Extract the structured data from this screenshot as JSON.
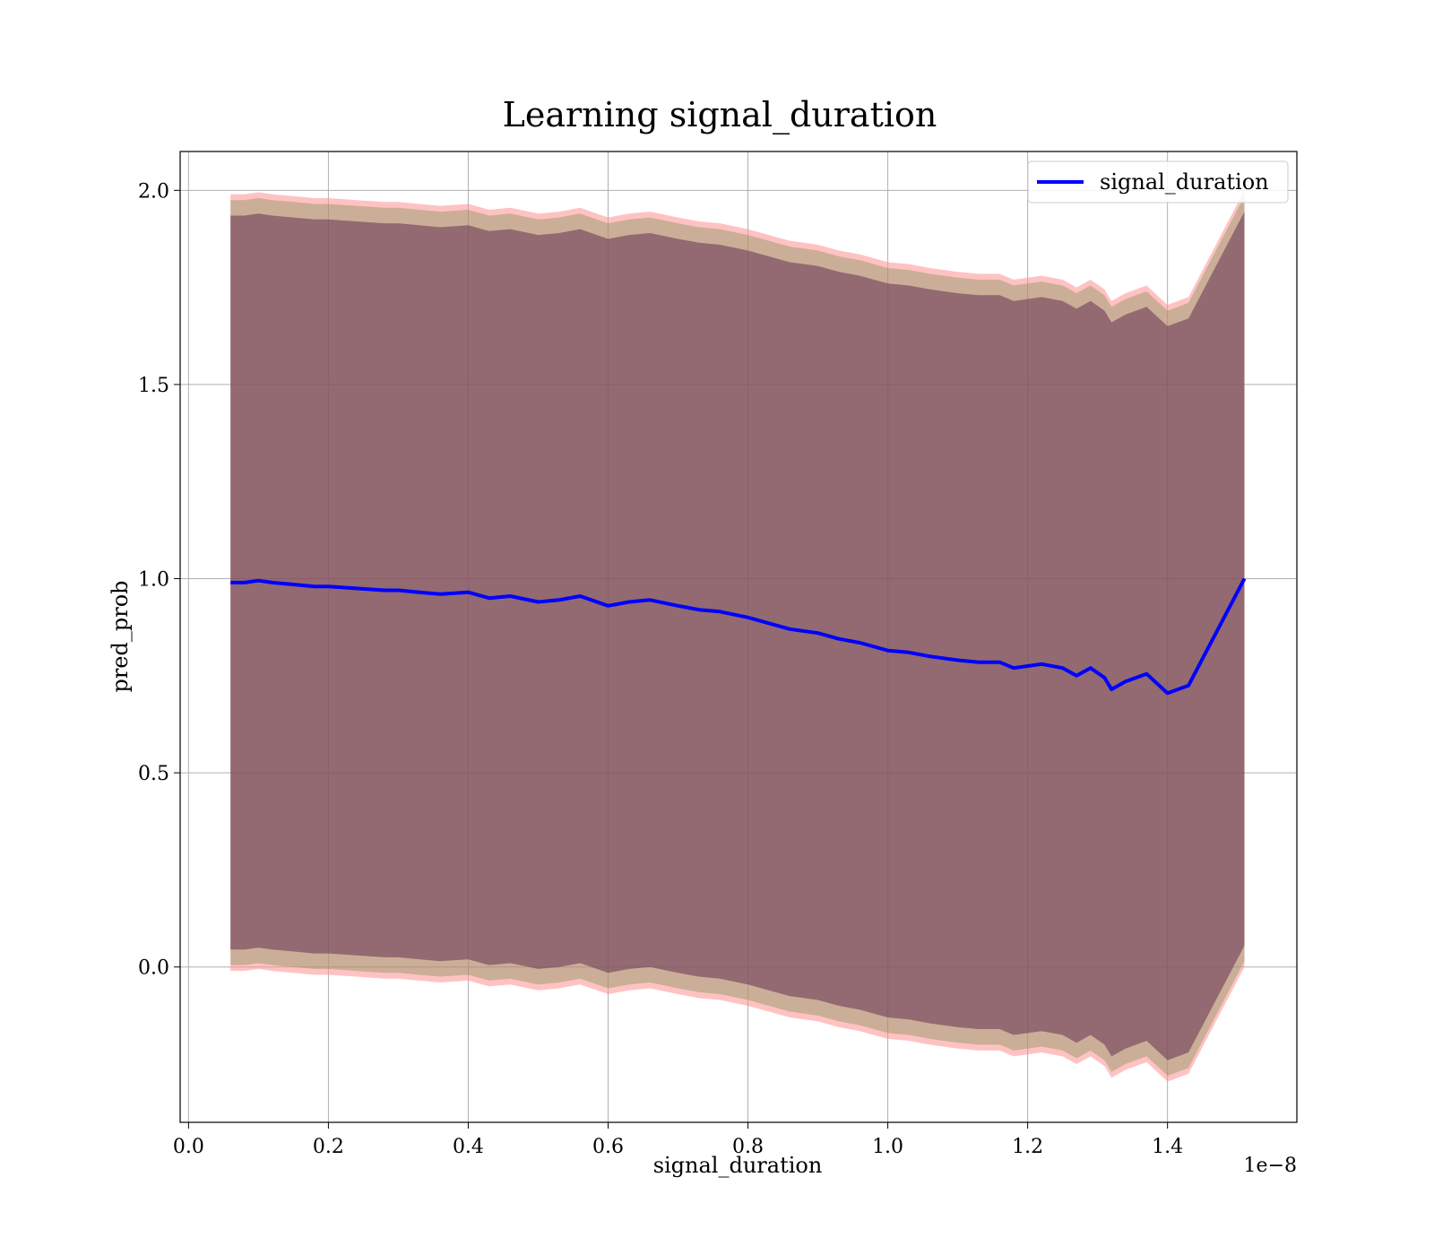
{
  "chart_data": {
    "type": "line",
    "title": "Learning signal_duration",
    "xlabel": "signal_duration",
    "ylabel": "pred_prob",
    "x_offset_label": "1e−8",
    "xlim": [
      -0.012,
      1.585
    ],
    "ylim": [
      -0.4,
      2.1
    ],
    "x_ticks": [
      0.0,
      0.2,
      0.4,
      0.6,
      0.8,
      1.0,
      1.2,
      1.4
    ],
    "x_tick_labels": [
      "0.0",
      "0.2",
      "0.4",
      "0.6",
      "0.8",
      "1.0",
      "1.2",
      "1.4"
    ],
    "y_ticks": [
      0.0,
      0.5,
      1.0,
      1.5,
      2.0
    ],
    "y_tick_labels": [
      "0.0",
      "0.5",
      "1.0",
      "1.5",
      "2.0"
    ],
    "grid": true,
    "legend_position": "top-right",
    "series": [
      {
        "name": "signal_duration",
        "color": "#0000ff",
        "x": [
          0.06,
          0.08,
          0.1,
          0.12,
          0.15,
          0.18,
          0.2,
          0.24,
          0.28,
          0.3,
          0.33,
          0.36,
          0.4,
          0.43,
          0.46,
          0.5,
          0.53,
          0.56,
          0.6,
          0.63,
          0.66,
          0.7,
          0.73,
          0.76,
          0.8,
          0.83,
          0.86,
          0.9,
          0.93,
          0.96,
          1.0,
          1.03,
          1.06,
          1.1,
          1.13,
          1.16,
          1.18,
          1.2,
          1.22,
          1.25,
          1.27,
          1.29,
          1.31,
          1.32,
          1.34,
          1.37,
          1.4,
          1.43,
          1.51
        ],
        "y": [
          0.99,
          0.99,
          0.995,
          0.99,
          0.985,
          0.98,
          0.98,
          0.975,
          0.97,
          0.97,
          0.965,
          0.96,
          0.965,
          0.95,
          0.955,
          0.94,
          0.945,
          0.955,
          0.93,
          0.94,
          0.945,
          0.93,
          0.92,
          0.915,
          0.9,
          0.885,
          0.87,
          0.86,
          0.845,
          0.835,
          0.815,
          0.81,
          0.8,
          0.79,
          0.785,
          0.785,
          0.77,
          0.775,
          0.78,
          0.77,
          0.75,
          0.77,
          0.745,
          0.715,
          0.735,
          0.755,
          0.705,
          0.725,
          1.0
        ]
      }
    ],
    "bands": [
      {
        "color": "#ff9090",
        "opacity": 0.55,
        "upper": [
          1.99,
          1.99,
          1.995,
          1.99,
          1.985,
          1.98,
          1.98,
          1.975,
          1.97,
          1.97,
          1.965,
          1.96,
          1.965,
          1.95,
          1.955,
          1.94,
          1.945,
          1.955,
          1.93,
          1.94,
          1.945,
          1.93,
          1.92,
          1.915,
          1.9,
          1.885,
          1.87,
          1.86,
          1.845,
          1.835,
          1.815,
          1.81,
          1.8,
          1.79,
          1.785,
          1.785,
          1.77,
          1.775,
          1.78,
          1.77,
          1.75,
          1.77,
          1.745,
          1.715,
          1.735,
          1.755,
          1.705,
          1.725,
          2.0
        ],
        "lower": [
          -0.01,
          -0.01,
          -0.005,
          -0.01,
          -0.015,
          -0.02,
          -0.02,
          -0.025,
          -0.03,
          -0.03,
          -0.035,
          -0.04,
          -0.035,
          -0.05,
          -0.045,
          -0.06,
          -0.055,
          -0.045,
          -0.07,
          -0.06,
          -0.055,
          -0.07,
          -0.08,
          -0.085,
          -0.1,
          -0.115,
          -0.13,
          -0.14,
          -0.155,
          -0.165,
          -0.185,
          -0.19,
          -0.2,
          -0.21,
          -0.215,
          -0.215,
          -0.23,
          -0.225,
          -0.22,
          -0.23,
          -0.25,
          -0.23,
          -0.255,
          -0.285,
          -0.265,
          -0.245,
          -0.295,
          -0.275,
          0.0
        ]
      },
      {
        "color": "#6a8a48",
        "opacity": 0.35,
        "upper": [
          1.975,
          1.975,
          1.98,
          1.975,
          1.97,
          1.965,
          1.965,
          1.96,
          1.955,
          1.955,
          1.95,
          1.945,
          1.95,
          1.935,
          1.94,
          1.925,
          1.93,
          1.94,
          1.915,
          1.925,
          1.93,
          1.915,
          1.905,
          1.9,
          1.885,
          1.87,
          1.855,
          1.845,
          1.83,
          1.82,
          1.8,
          1.795,
          1.785,
          1.775,
          1.77,
          1.77,
          1.755,
          1.76,
          1.765,
          1.755,
          1.735,
          1.755,
          1.73,
          1.7,
          1.72,
          1.74,
          1.69,
          1.71,
          1.985
        ],
        "lower": [
          0.005,
          0.005,
          0.01,
          0.005,
          0.0,
          -0.005,
          -0.005,
          -0.01,
          -0.015,
          -0.015,
          -0.02,
          -0.025,
          -0.02,
          -0.035,
          -0.03,
          -0.045,
          -0.04,
          -0.03,
          -0.055,
          -0.045,
          -0.04,
          -0.055,
          -0.065,
          -0.07,
          -0.085,
          -0.1,
          -0.115,
          -0.125,
          -0.14,
          -0.15,
          -0.17,
          -0.175,
          -0.185,
          -0.195,
          -0.2,
          -0.2,
          -0.215,
          -0.21,
          -0.205,
          -0.215,
          -0.235,
          -0.215,
          -0.24,
          -0.27,
          -0.25,
          -0.23,
          -0.28,
          -0.26,
          0.015
        ]
      },
      {
        "color": "#6e3a5a",
        "opacity": 0.6,
        "upper": [
          1.935,
          1.935,
          1.94,
          1.935,
          1.93,
          1.925,
          1.925,
          1.92,
          1.915,
          1.915,
          1.91,
          1.905,
          1.91,
          1.895,
          1.9,
          1.885,
          1.89,
          1.9,
          1.875,
          1.885,
          1.89,
          1.875,
          1.865,
          1.86,
          1.845,
          1.83,
          1.815,
          1.805,
          1.79,
          1.78,
          1.76,
          1.755,
          1.745,
          1.735,
          1.73,
          1.73,
          1.715,
          1.72,
          1.725,
          1.715,
          1.695,
          1.715,
          1.69,
          1.66,
          1.68,
          1.7,
          1.65,
          1.67,
          1.945
        ],
        "lower": [
          0.045,
          0.045,
          0.05,
          0.045,
          0.04,
          0.035,
          0.035,
          0.03,
          0.025,
          0.025,
          0.02,
          0.015,
          0.02,
          0.005,
          0.01,
          -0.005,
          0.0,
          0.01,
          -0.015,
          -0.005,
          0.0,
          -0.015,
          -0.025,
          -0.03,
          -0.045,
          -0.06,
          -0.075,
          -0.085,
          -0.1,
          -0.11,
          -0.13,
          -0.135,
          -0.145,
          -0.155,
          -0.16,
          -0.16,
          -0.175,
          -0.17,
          -0.165,
          -0.175,
          -0.195,
          -0.175,
          -0.2,
          -0.23,
          -0.21,
          -0.19,
          -0.24,
          -0.22,
          0.055
        ]
      }
    ]
  }
}
